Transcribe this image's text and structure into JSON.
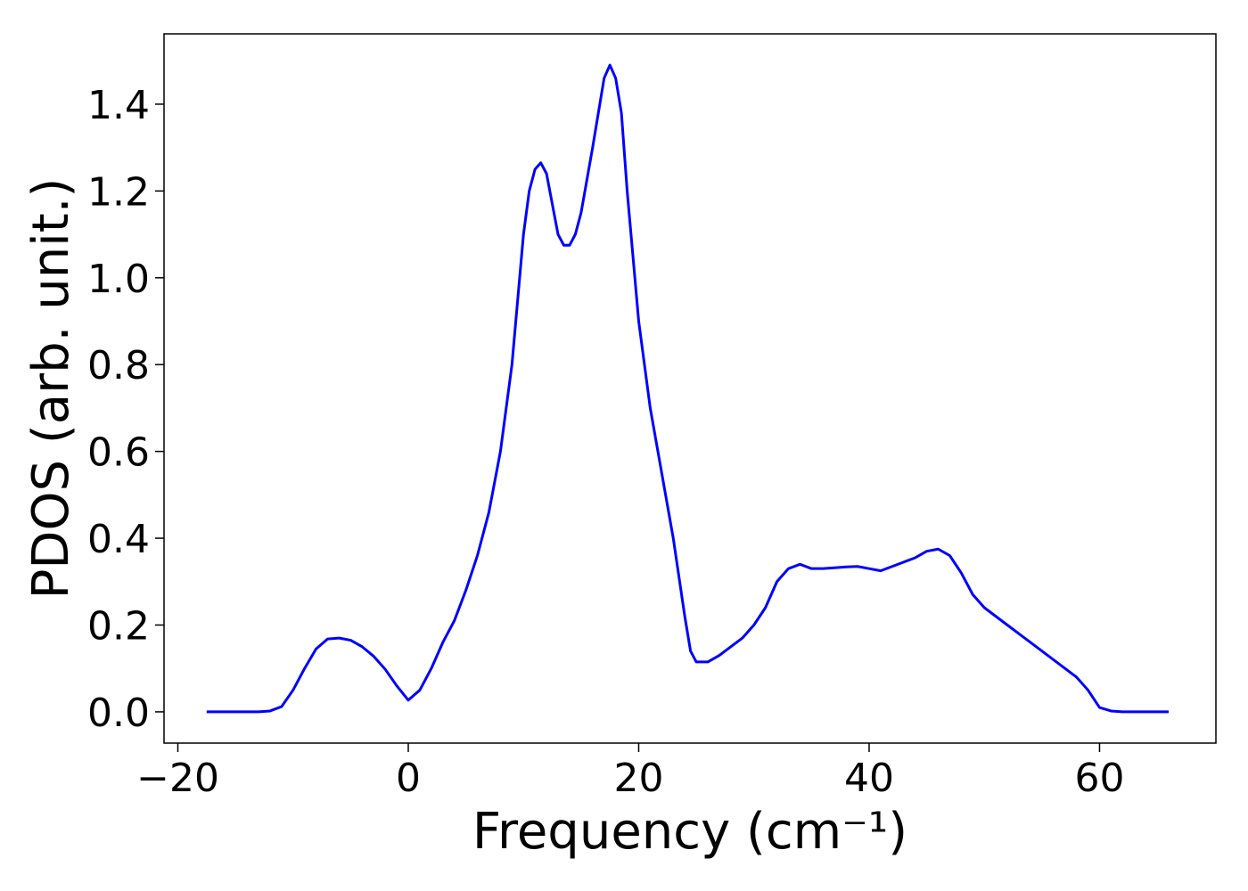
{
  "chart_data": {
    "type": "line",
    "x_label": "Frequency (cm⁻¹)",
    "y_label": "PDOS (arb. unit.)",
    "x": [
      -17.5,
      -15,
      -13,
      -12,
      -11,
      -10,
      -9,
      -8,
      -7,
      -6,
      -5,
      -4,
      -3,
      -2,
      -1,
      0,
      1,
      2,
      3,
      4,
      5,
      6,
      7,
      8,
      9,
      10,
      10.5,
      11,
      11.5,
      12,
      13,
      13.5,
      14,
      14.5,
      15,
      16,
      17,
      17.5,
      18,
      18.5,
      19,
      20,
      21,
      22,
      23,
      24,
      24.5,
      25,
      26,
      27,
      28,
      29,
      30,
      31,
      32,
      33,
      34,
      35,
      36,
      37,
      38,
      39,
      40,
      41,
      42,
      43,
      44,
      45,
      46,
      47,
      48,
      49,
      50,
      52,
      54,
      56,
      58,
      59,
      60,
      61,
      62,
      66
    ],
    "series": [
      {
        "name": "PDOS",
        "color": "#0000ff",
        "values": [
          0,
          0,
          0,
          0.002,
          0.012,
          0.05,
          0.1,
          0.145,
          0.168,
          0.17,
          0.165,
          0.15,
          0.128,
          0.098,
          0.06,
          0.027,
          0.05,
          0.1,
          0.16,
          0.21,
          0.28,
          0.36,
          0.46,
          0.6,
          0.8,
          1.1,
          1.2,
          1.25,
          1.265,
          1.24,
          1.1,
          1.075,
          1.075,
          1.1,
          1.15,
          1.3,
          1.46,
          1.49,
          1.46,
          1.38,
          1.2,
          0.9,
          0.7,
          0.55,
          0.4,
          0.22,
          0.14,
          0.115,
          0.115,
          0.13,
          0.15,
          0.17,
          0.2,
          0.24,
          0.3,
          0.33,
          0.34,
          0.33,
          0.33,
          0.332,
          0.334,
          0.335,
          0.33,
          0.325,
          0.335,
          0.345,
          0.355,
          0.37,
          0.375,
          0.36,
          0.32,
          0.27,
          0.24,
          0.2,
          0.16,
          0.12,
          0.08,
          0.05,
          0.01,
          0.002,
          0,
          0
        ]
      }
    ],
    "xlim": [
      -21.2,
      70.1
    ],
    "ylim": [
      -0.072,
      1.562
    ],
    "xticks": [
      {
        "value": -20,
        "label": "−20"
      },
      0,
      20,
      40,
      60
    ],
    "yticks": [
      {
        "value": 0,
        "label": "0.0"
      },
      0.2,
      0.4,
      0.6,
      0.8,
      {
        "value": 1,
        "label": "1.0"
      },
      1.2,
      1.4
    ],
    "grid": false
  }
}
